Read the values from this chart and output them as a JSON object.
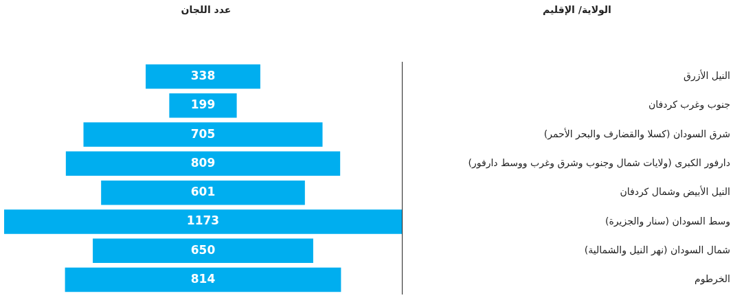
{
  "chart_data": {
    "type": "other",
    "xlabel": "عدد اللجان",
    "ylabel": "الولاية/ الإقليم",
    "categories": [
      "النيل الأزرق",
      "جنوب وغرب كردفان",
      "شرق السودان (كسلا والقضارف والبحر الأحمر)",
      "دارفور الكبرى (ولايات شمال وجنوب وشرق وغرب ووسط دارفور)",
      "النيل الأبيض وشمال كردفان",
      "وسط السودان (سنار والجزيرة)",
      "شمال السودان (نهر النيل والشمالية)",
      "الخرطوم"
    ],
    "values": [
      338,
      199,
      705,
      809,
      601,
      1173,
      650,
      814
    ],
    "color": "#00aeef",
    "data_labels": true,
    "legend": false
  }
}
